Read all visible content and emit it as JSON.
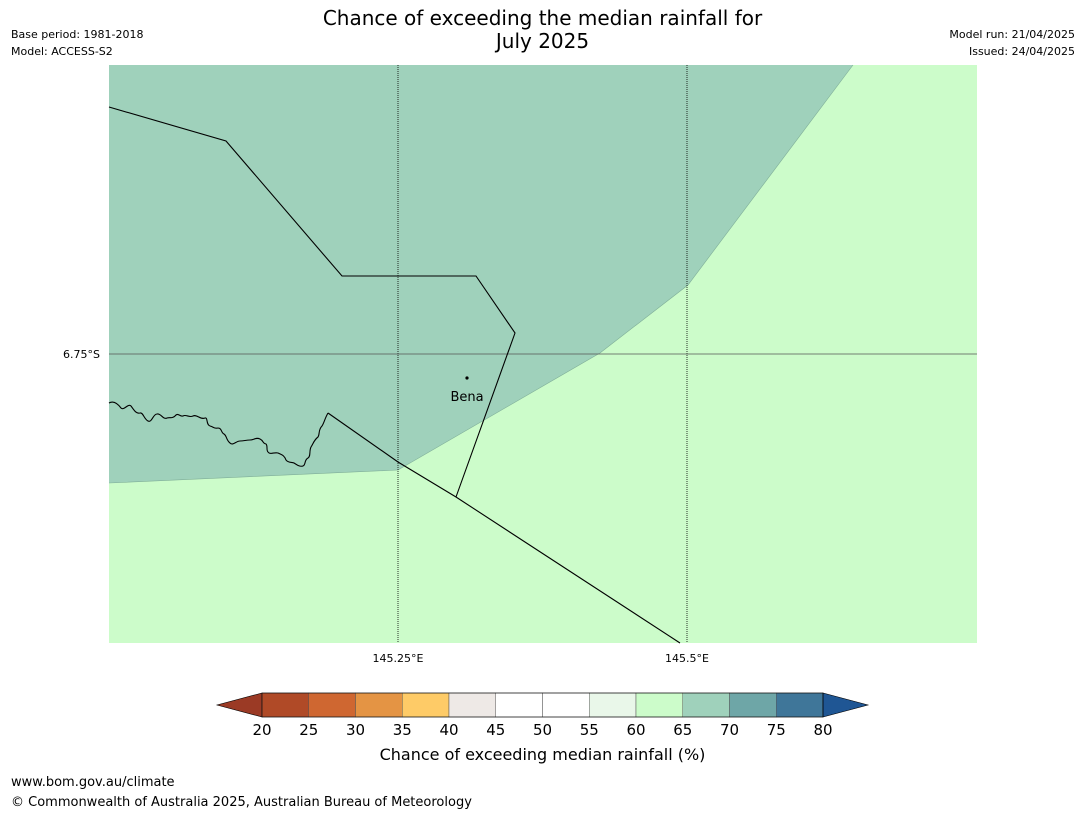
{
  "header": {
    "title_line1": "Chance of exceeding the median rainfall for",
    "title_line2": "July 2025",
    "base_period": "Base period: 1981-2018",
    "model": "Model: ACCESS-S2",
    "model_run": "Model run: 21/04/2025",
    "issued": "Issued: 24/04/2025"
  },
  "map": {
    "lat_labels": [
      "6.75°S"
    ],
    "lon_labels": [
      "145.25°E",
      "145.5°E"
    ],
    "place_label": "Bena",
    "region_colors": {
      "upper": "#9fd1bb",
      "lower": "#ccfcca"
    }
  },
  "colorbar": {
    "label": "Chance of exceeding median rainfall (%)",
    "ticks": [
      "20",
      "25",
      "30",
      "35",
      "40",
      "45",
      "50",
      "55",
      "60",
      "65",
      "70",
      "75",
      "80"
    ],
    "low_extend_color": "#9b3a25",
    "high_extend_color": "#1f5694",
    "colors": [
      "#b04a27",
      "#cf6731",
      "#e49444",
      "#fecb67",
      "#eee9e6",
      "#ffffff",
      "#ffffff",
      "#e9f7e9",
      "#ccfcca",
      "#9fd1bb",
      "#6ea6a7",
      "#3f7699"
    ]
  },
  "footer": {
    "url": "www.bom.gov.au/climate",
    "copyright": "© Commonwealth of Australia 2025, Australian Bureau of Meteorology"
  }
}
